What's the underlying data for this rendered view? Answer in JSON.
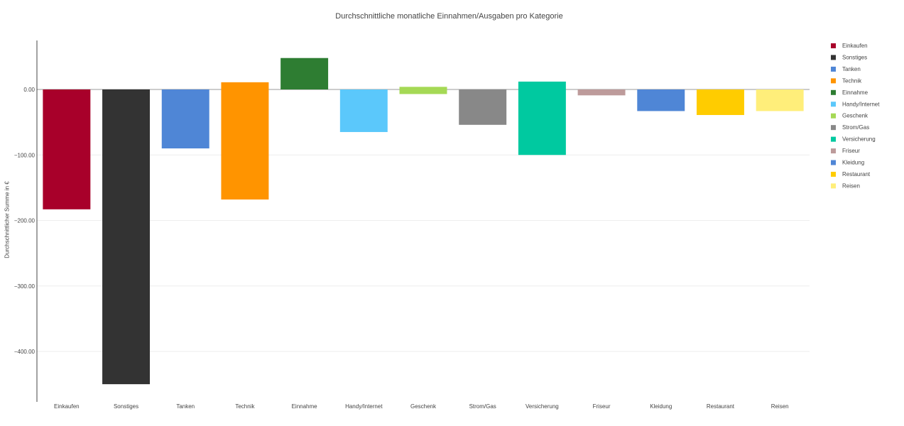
{
  "chart_data": {
    "type": "bar",
    "title": "Durchschnittliche monatliche Einnahmen/Ausgaben pro Kategorie",
    "xlabel": "",
    "ylabel": "Durchschnittlicher Summe in €",
    "ylim": [
      -460,
      75
    ],
    "yticks": [
      0,
      -100,
      -200,
      -300,
      -400
    ],
    "ytick_labels": [
      "0.00",
      "−100.00",
      "−200.00",
      "−300.00",
      "−400.00"
    ],
    "categories": [
      "Einkaufen",
      "Sonstiges",
      "Tanken",
      "Technik",
      "Einnahme",
      "Handy/Internet",
      "Geschenk",
      "Strom/Gas",
      "Versicherung",
      "Friseur",
      "Kleidung",
      "Restaurant",
      "Reisen"
    ],
    "series": [
      {
        "name": "Einkaufen",
        "color": "#a8002a",
        "low": -183,
        "high": 0
      },
      {
        "name": "Sonstiges",
        "color": "#333333",
        "low": -450,
        "high": 0
      },
      {
        "name": "Tanken",
        "color": "#4f86d6",
        "low": -90,
        "high": 0
      },
      {
        "name": "Technik",
        "color": "#ff9400",
        "low": -168,
        "high": 11
      },
      {
        "name": "Einnahme",
        "color": "#2e7d32",
        "low": 0,
        "high": 48
      },
      {
        "name": "Handy/Internet",
        "color": "#5bc8fb",
        "low": -65,
        "high": 0
      },
      {
        "name": "Geschenk",
        "color": "#a5d955",
        "low": -7,
        "high": 4
      },
      {
        "name": "Strom/Gas",
        "color": "#888888",
        "low": -54,
        "high": 0
      },
      {
        "name": "Versicherung",
        "color": "#00c9a0",
        "low": -100,
        "high": 12
      },
      {
        "name": "Friseur",
        "color": "#bd9b9b",
        "low": -9,
        "high": 0
      },
      {
        "name": "Kleidung",
        "color": "#4f86d6",
        "low": -33,
        "high": 0
      },
      {
        "name": "Restaurant",
        "color": "#ffcc00",
        "low": -39,
        "high": 0
      },
      {
        "name": "Reisen",
        "color": "#ffee7a",
        "low": -33,
        "high": 0
      }
    ],
    "grid": true,
    "legend": "right"
  }
}
